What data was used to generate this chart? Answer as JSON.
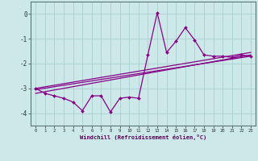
{
  "xlabel": "Windchill (Refroidissement éolien,°C)",
  "bg_color": "#cce8e8",
  "grid_color": "#aacfcf",
  "line_color": "#880088",
  "xlim": [
    -0.5,
    23.5
  ],
  "ylim": [
    -4.5,
    0.5
  ],
  "xticks": [
    0,
    1,
    2,
    3,
    4,
    5,
    6,
    7,
    8,
    9,
    10,
    11,
    12,
    13,
    14,
    15,
    16,
    17,
    18,
    19,
    20,
    21,
    22,
    23
  ],
  "yticks": [
    0,
    -1,
    -2,
    -3,
    -4
  ],
  "series1_x": [
    0,
    1,
    2,
    3,
    4,
    5,
    6,
    7,
    8,
    9,
    10,
    11,
    12,
    13,
    14,
    15,
    16,
    17,
    18,
    19,
    20,
    21,
    22,
    23
  ],
  "series1_y": [
    -3.0,
    -3.2,
    -3.3,
    -3.4,
    -3.55,
    -3.9,
    -3.3,
    -3.3,
    -3.95,
    -3.4,
    -3.35,
    -3.4,
    -1.65,
    0.05,
    -1.55,
    -1.1,
    -0.55,
    -1.05,
    -1.65,
    -1.7,
    -1.7,
    -1.75,
    -1.65,
    -1.7
  ],
  "series2_x": [
    0,
    23
  ],
  "series2_y": [
    -3.0,
    -1.55
  ],
  "series3_x": [
    0,
    23
  ],
  "series3_y": [
    -3.05,
    -1.7
  ],
  "series4_x": [
    0,
    23
  ],
  "series4_y": [
    -3.2,
    -1.65
  ]
}
